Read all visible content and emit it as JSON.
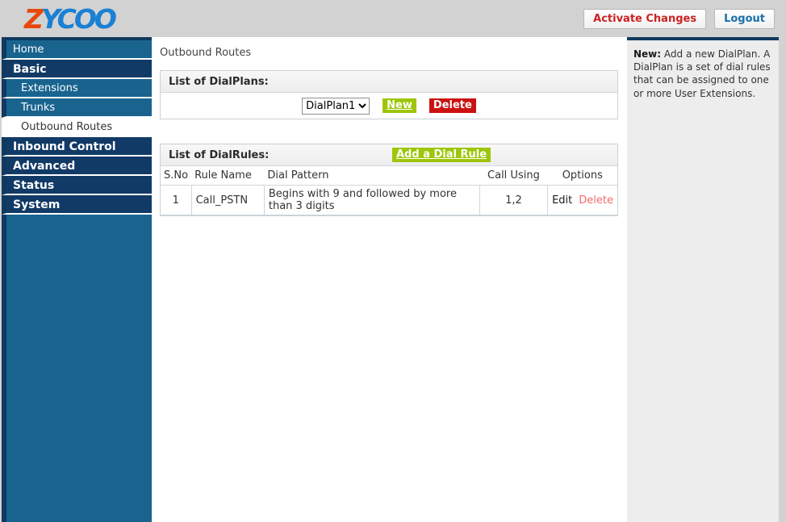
{
  "header": {
    "logo": {
      "z": "Z",
      "rest": "YCOO"
    },
    "activate_changes_label": "Activate Changes",
    "logout_label": "Logout"
  },
  "sidebar": {
    "items": [
      {
        "label": "Home"
      },
      {
        "label": "Basic"
      },
      {
        "label": "Extensions"
      },
      {
        "label": "Trunks"
      },
      {
        "label": "Outbound Routes"
      },
      {
        "label": "Inbound Control"
      },
      {
        "label": "Advanced"
      },
      {
        "label": "Status"
      },
      {
        "label": "System"
      }
    ]
  },
  "main": {
    "page_title": "Outbound Routes",
    "dialplans": {
      "header": "List of DialPlans:",
      "selected_plan": "DialPlan1",
      "new_label": "New",
      "delete_label": "Delete"
    },
    "dialrules": {
      "header": "List of DialRules:",
      "add_rule_label": "Add a Dial Rule",
      "columns": [
        "S.No",
        "Rule Name",
        "Dial Pattern",
        "Call Using",
        "Options"
      ],
      "rows": [
        {
          "sno": "1",
          "rule_name": "Call_PSTN",
          "dial_pattern": "Begins with 9 and followed by more than 3 digits",
          "call_using": "1,2",
          "edit_label": "Edit",
          "delete_label": "Delete"
        }
      ]
    }
  },
  "help": {
    "title": "New:",
    "text": " Add a new DialPlan. A DialPlan is a set of dial rules that can be assigned to one or more User Extensions."
  },
  "colors": {
    "nav_dark": "#123a66",
    "nav_medium": "#19648f",
    "accent_green": "#9dc609",
    "accent_red": "#cc1111",
    "link_delete": "#f4696b",
    "page_bg": "#d2d2d2"
  }
}
